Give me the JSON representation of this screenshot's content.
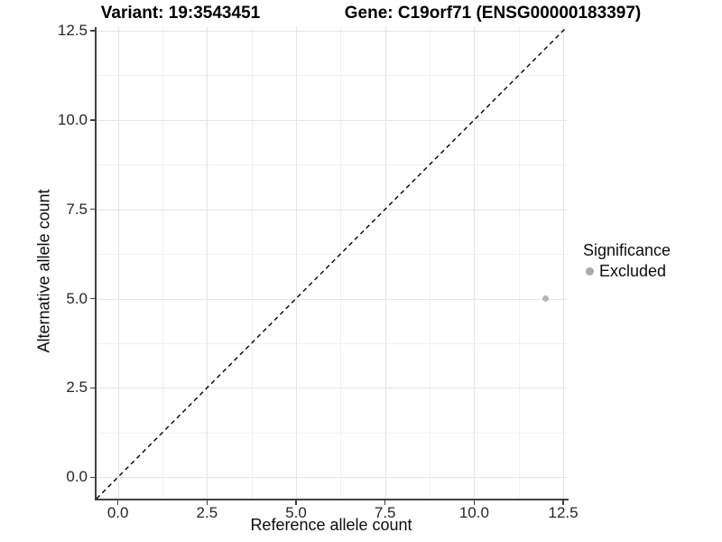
{
  "figure": {
    "title_variant": "Variant: 19:3543451",
    "title_gene": "Gene: C19orf71 (ENSG00000183397)"
  },
  "chart_data": {
    "type": "scatter",
    "title": "Variant: 19:3543451   Gene: C19orf71 (ENSG00000183397)",
    "xlabel": "Reference allele count",
    "ylabel": "Alternative allele count",
    "xlim": [
      -0.6,
      12.6
    ],
    "ylim": [
      -0.6,
      12.6
    ],
    "ticks": [
      0,
      2.5,
      5,
      7.5,
      10,
      12.5
    ],
    "tick_labels": [
      "0.0",
      "2.5",
      "5.0",
      "7.5",
      "10.0",
      "12.5"
    ],
    "minor_gridlines": [
      1.25,
      3.75,
      6.25,
      8.75,
      11.25
    ],
    "grid": true,
    "reference_line": {
      "style": "dashed",
      "slope": 1,
      "intercept": 0,
      "color": "#000000"
    },
    "series": [
      {
        "name": "Excluded",
        "color": "#b5b5b5",
        "points": [
          {
            "x": 12,
            "y": 5
          }
        ]
      }
    ],
    "legend": {
      "title": "Significance",
      "position": "right",
      "items": [
        {
          "label": "Excluded",
          "color": "#aaaaaa"
        }
      ]
    }
  },
  "colors": {
    "background": "#ffffff",
    "axis_line": "#404040",
    "tick": "#404040",
    "tick_label": "#262626",
    "text": "#000000",
    "grid_major": "#e4e4e4",
    "grid_minor": "#f1f1f1"
  }
}
